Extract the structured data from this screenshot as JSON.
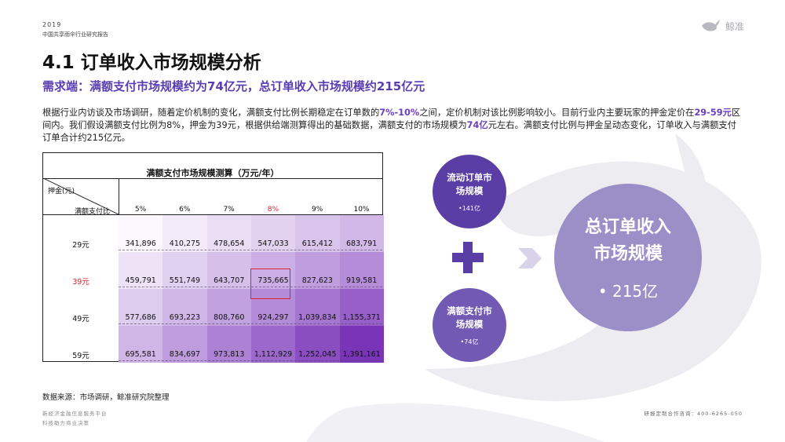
{
  "header": {
    "year": "2019",
    "report_name": "中国共享雨伞行业研究报告",
    "logo_text": "鲸准",
    "logo_icon": "whale-icon"
  },
  "title": "4.1 订单收入市场规模分析",
  "subtitle": "需求端：满额支付市场规模约为74亿元，总订单收入市场规模约215亿元",
  "paragraph": {
    "p1": "根据行业内访谈及市场调研，随着定价机制的变化，满额支付比例长期稳定在订单数的",
    "h1": "7%-10%",
    "p2": "之间，定价机制对该比例影响较小。目前行业内主要玩家的押金定价在",
    "h2": "29-59元",
    "p3": "区间内。我们假设满额支付比例为8%，押金为39元，根据供给端测算得出的基础数据，满额支付的市场规模为",
    "h3": "74亿",
    "p4": "元左右。满额支付比例与押金呈动态变化，订单收入与满额支付订单合计约215亿元。"
  },
  "table": {
    "title": "满额支付市场规模测算（万元/年）",
    "corner_row_label": "押金(元)",
    "corner_col_label": "满额支付比",
    "columns": [
      "5%",
      "6%",
      "7%",
      "8%",
      "9%",
      "10%"
    ],
    "highlight_column": "8%",
    "highlight_row": "39元",
    "rows": [
      {
        "label": "29元",
        "values": [
          "341,896",
          "410,275",
          "478,654",
          "547,033",
          "615,412",
          "683,791"
        ]
      },
      {
        "label": "39元",
        "values": [
          "459,791",
          "551,749",
          "643,707",
          "735,665",
          "827,623",
          "919,581"
        ]
      },
      {
        "label": "49元",
        "values": [
          "577,686",
          "693,223",
          "808,760",
          "924,297",
          "1,039,834",
          "1,155,371"
        ]
      },
      {
        "label": "59元",
        "values": [
          "695,581",
          "834,697",
          "973,813",
          "1,112,929",
          "1,252,045",
          "1,391,161"
        ]
      }
    ],
    "colors": {
      "highlight": "#e0222a",
      "heat_low": "#fbf8fe",
      "heat_high": "#7a34b8"
    }
  },
  "diagram": {
    "circle1": {
      "label_line1": "流动订单市",
      "label_line2": "场规模",
      "value": "•141亿"
    },
    "circle2": {
      "label_line1": "满额支付市",
      "label_line2": "场规模",
      "value": "•74亿"
    },
    "result": {
      "label_line1": "总订单收入",
      "label_line2": "市场规模",
      "value": "• 215亿"
    },
    "plus_icon": "plus-icon",
    "arrow_icon": "chevron-right-icon"
  },
  "source": "数据来源：市场调研，鲸准研究院整理",
  "footer": {
    "left_line1": "新经济金融信息服务平台",
    "left_line2": "科技助力商业决策",
    "right": "研报定制合作咨询：400-6265-050"
  }
}
